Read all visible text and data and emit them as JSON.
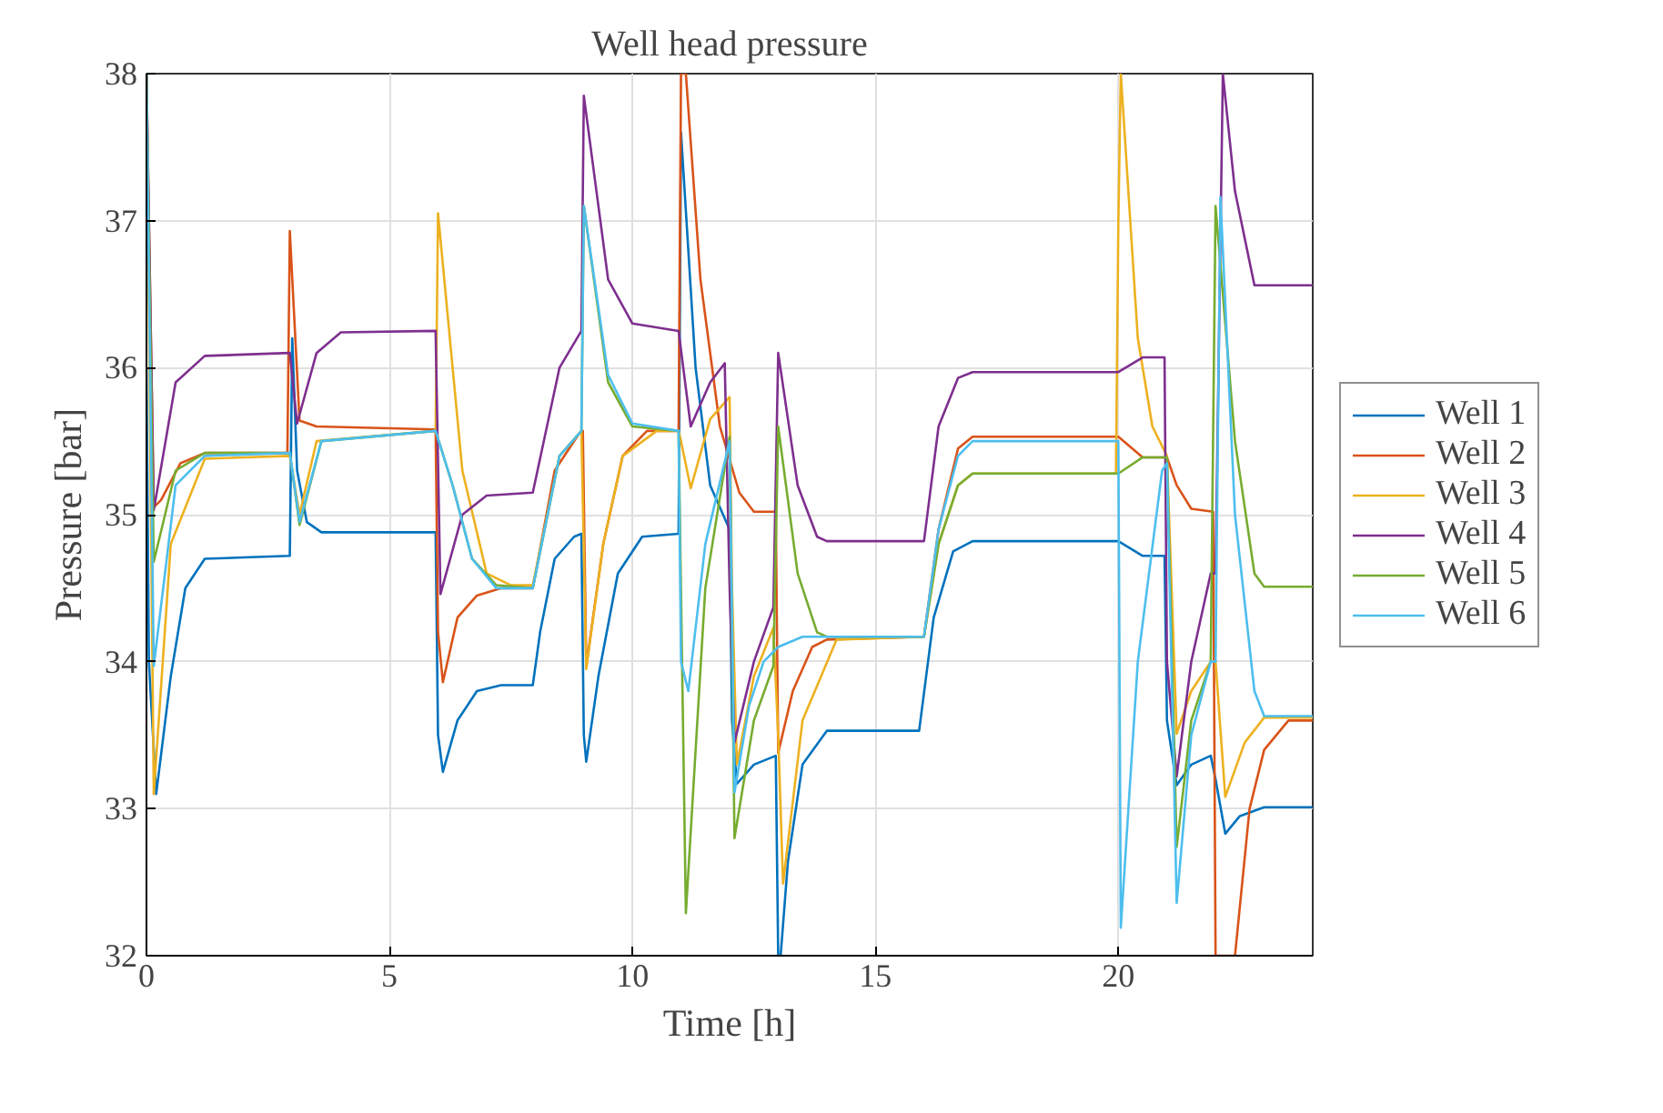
{
  "chart_data": {
    "type": "line",
    "title": "Well head pressure",
    "xlabel": "Time [h]",
    "ylabel": "Pressure [bar]",
    "xlim": [
      0,
      24
    ],
    "ylim": [
      32,
      38
    ],
    "xticks": [
      0,
      5,
      10,
      15,
      20
    ],
    "yticks": [
      32,
      33,
      34,
      35,
      36,
      37,
      38
    ],
    "grid": true,
    "legend": "right",
    "line_style": "solid",
    "marker": "none",
    "series": [
      {
        "name": "Well 1",
        "color": "#0072bd",
        "x": [
          0,
          0.05,
          0.2,
          0.5,
          0.8,
          1.2,
          2.95,
          3.0,
          3.1,
          3.3,
          3.6,
          5.95,
          6.0,
          6.1,
          6.4,
          6.8,
          7.3,
          7.95,
          8.1,
          8.4,
          8.8,
          8.95,
          9.0,
          9.05,
          9.3,
          9.7,
          10.2,
          10.95,
          11.0,
          11.3,
          11.6,
          12.0,
          12.05,
          12.15,
          12.5,
          12.95,
          13.0,
          13.05,
          13.2,
          13.5,
          14.0,
          15.9,
          16.2,
          16.6,
          17.0,
          20.0,
          20.5,
          20.95,
          21.0,
          21.2,
          21.5,
          21.9,
          22.0,
          22.2,
          22.5,
          23.0,
          24.0
        ],
        "values": [
          36,
          34,
          33.1,
          33.9,
          34.5,
          34.7,
          34.72,
          36.2,
          35.3,
          34.95,
          34.88,
          34.88,
          33.5,
          33.25,
          33.6,
          33.8,
          33.84,
          33.84,
          34.2,
          34.7,
          34.85,
          34.87,
          33.5,
          33.32,
          33.9,
          34.6,
          34.85,
          34.87,
          37.6,
          36.0,
          35.2,
          34.9,
          33.6,
          33.17,
          33.3,
          33.36,
          32.0,
          32.0,
          32.64,
          33.3,
          33.53,
          33.53,
          34.3,
          34.75,
          34.82,
          34.82,
          34.72,
          34.72,
          33.6,
          33.16,
          33.3,
          33.36,
          33.2,
          32.83,
          32.95,
          33.01,
          33.01
        ]
      },
      {
        "name": "Well 2",
        "color": "#d95319",
        "x": [
          0,
          0.15,
          0.3,
          0.7,
          1.2,
          2.9,
          2.95,
          3.15,
          3.5,
          5.95,
          6.0,
          6.1,
          6.4,
          6.8,
          7.3,
          7.95,
          8.4,
          8.9,
          8.98,
          9.05,
          9.4,
          9.8,
          10.3,
          10.95,
          11.0,
          11.1,
          11.4,
          11.8,
          12.2,
          12.5,
          12.95,
          13.0,
          13.3,
          13.7,
          14.0,
          16.0,
          16.3,
          16.7,
          17.0,
          20.0,
          20.5,
          21.0,
          21.2,
          21.5,
          21.95,
          22.0,
          22.4,
          22.7,
          23.0,
          23.5,
          24.0
        ],
        "values": [
          38,
          35.05,
          35.1,
          35.35,
          35.42,
          35.42,
          36.93,
          35.64,
          35.6,
          35.58,
          34.2,
          33.86,
          34.3,
          34.45,
          34.5,
          34.5,
          35.3,
          35.55,
          35.57,
          33.97,
          34.8,
          35.4,
          35.57,
          35.57,
          38,
          38,
          36.6,
          35.6,
          35.15,
          35.02,
          35.02,
          33.38,
          33.8,
          34.1,
          34.15,
          34.17,
          34.9,
          35.45,
          35.53,
          35.53,
          35.39,
          35.39,
          35.2,
          35.04,
          35.02,
          32,
          32,
          33.0,
          33.4,
          33.6,
          33.6
        ]
      },
      {
        "name": "Well 3",
        "color": "#edb120",
        "x": [
          0,
          0.15,
          0.5,
          1.2,
          2.95,
          3.15,
          3.5,
          5.95,
          6.0,
          6.5,
          7.0,
          7.5,
          7.95,
          8.5,
          8.95,
          9.05,
          9.4,
          9.8,
          10.5,
          10.95,
          11.0,
          11.2,
          11.6,
          12.0,
          12.05,
          12.15,
          12.5,
          12.9,
          13.0,
          13.1,
          13.5,
          14.2,
          16.0,
          16.3,
          16.7,
          17.0,
          19.95,
          20.0,
          20.05,
          20.4,
          20.7,
          21.0,
          21.2,
          21.5,
          21.9,
          22.0,
          22.2,
          22.6,
          23.0,
          24.0
        ],
        "values": [
          38,
          33.1,
          34.8,
          35.38,
          35.4,
          35.0,
          35.5,
          35.57,
          37.05,
          35.3,
          34.6,
          34.52,
          34.52,
          35.4,
          35.57,
          33.95,
          34.8,
          35.4,
          35.57,
          35.57,
          35.5,
          35.18,
          35.65,
          35.8,
          34.5,
          33.3,
          33.9,
          34.23,
          33.5,
          32.49,
          33.6,
          34.15,
          34.17,
          34.8,
          35.2,
          35.28,
          35.28,
          37.0,
          38,
          36.2,
          35.6,
          35.4,
          33.51,
          33.8,
          34.0,
          34.0,
          33.08,
          33.45,
          33.62,
          33.62
        ]
      },
      {
        "name": "Well 4",
        "color": "#7e2f8e",
        "x": [
          0,
          0.15,
          0.6,
          1.2,
          2.95,
          3.1,
          3.5,
          4.0,
          5.95,
          6.05,
          6.5,
          7.0,
          7.95,
          8.5,
          8.95,
          9.0,
          9.5,
          10.0,
          10.95,
          11.2,
          11.6,
          11.9,
          12.0,
          12.1,
          12.5,
          12.9,
          13.0,
          13.4,
          13.8,
          14.0,
          16.0,
          16.3,
          16.7,
          17.0,
          20.0,
          20.5,
          20.95,
          21.0,
          21.2,
          21.5,
          21.9,
          22.0,
          22.15,
          22.4,
          22.8,
          24.0
        ],
        "values": [
          38,
          35.03,
          35.9,
          36.08,
          36.1,
          35.62,
          36.1,
          36.24,
          36.25,
          34.46,
          35.0,
          35.13,
          35.15,
          36.0,
          36.25,
          37.85,
          36.6,
          36.3,
          36.25,
          35.6,
          35.9,
          36.03,
          34.5,
          33.45,
          34.0,
          34.37,
          36.1,
          35.2,
          34.85,
          34.82,
          34.82,
          35.6,
          35.93,
          35.97,
          35.97,
          36.07,
          36.07,
          34.0,
          33.22,
          34.0,
          34.6,
          34.6,
          38,
          37.2,
          36.56,
          36.56
        ]
      },
      {
        "name": "Well 5",
        "color": "#77ac30",
        "x": [
          0,
          0.15,
          0.6,
          1.2,
          2.95,
          3.15,
          3.6,
          5.95,
          6.3,
          6.7,
          7.2,
          7.95,
          8.5,
          8.95,
          9.0,
          9.5,
          10.0,
          10.95,
          11.1,
          11.5,
          12.0,
          12.1,
          12.5,
          12.9,
          13.0,
          13.4,
          13.8,
          14.0,
          16.0,
          16.3,
          16.7,
          17.0,
          20.0,
          20.5,
          21.0,
          21.2,
          21.5,
          21.9,
          22.0,
          22.4,
          22.8,
          23.0,
          24.0
        ],
        "values": [
          38,
          34.68,
          35.3,
          35.42,
          35.42,
          34.93,
          35.5,
          35.57,
          35.2,
          34.7,
          34.52,
          34.5,
          35.4,
          35.57,
          37.1,
          35.9,
          35.6,
          35.57,
          32.29,
          34.5,
          35.53,
          32.8,
          33.6,
          33.97,
          35.6,
          34.6,
          34.2,
          34.17,
          34.17,
          34.8,
          35.2,
          35.28,
          35.28,
          35.39,
          35.39,
          32.74,
          33.6,
          34.0,
          37.1,
          35.5,
          34.6,
          34.51,
          34.51
        ]
      },
      {
        "name": "Well 6",
        "color": "#4dbeee",
        "x": [
          0,
          0.15,
          0.6,
          1.2,
          2.95,
          3.15,
          3.6,
          5.95,
          6.3,
          6.7,
          7.2,
          7.95,
          8.5,
          8.95,
          9.0,
          9.5,
          10.0,
          10.95,
          11.0,
          11.15,
          11.5,
          12.0,
          12.1,
          12.4,
          12.7,
          13.0,
          13.5,
          16.0,
          16.3,
          16.7,
          17.0,
          20.0,
          20.05,
          20.4,
          20.9,
          21.0,
          21.2,
          21.5,
          21.9,
          22.0,
          22.1,
          22.4,
          22.8,
          23.0,
          24.0
        ],
        "values": [
          38,
          33.97,
          35.2,
          35.4,
          35.42,
          34.95,
          35.5,
          35.57,
          35.2,
          34.7,
          34.5,
          34.5,
          35.4,
          35.57,
          37.1,
          35.95,
          35.62,
          35.57,
          34.0,
          33.8,
          34.8,
          35.5,
          33.11,
          33.7,
          34.0,
          34.1,
          34.17,
          34.17,
          34.9,
          35.4,
          35.5,
          35.5,
          32.19,
          34.0,
          35.3,
          35.35,
          32.36,
          33.5,
          34.0,
          34.0,
          37.16,
          35.0,
          33.8,
          33.63,
          33.63
        ]
      }
    ]
  }
}
